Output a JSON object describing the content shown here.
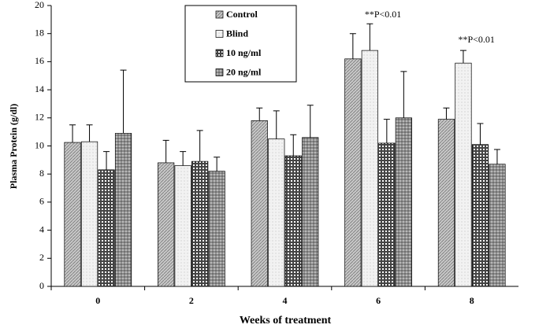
{
  "chart_data": {
    "type": "bar",
    "x_label": "Weeks of treatment",
    "y_label": "Plasma Protein (g/dl)",
    "categories": [
      "0",
      "2",
      "4",
      "6",
      "8"
    ],
    "series": [
      {
        "name": "Control",
        "color": "#c8c8c8",
        "values": [
          10.25,
          8.8,
          11.8,
          16.2,
          11.9
        ],
        "errors": [
          1.25,
          1.6,
          0.9,
          1.8,
          0.8
        ]
      },
      {
        "name": "Blind",
        "color": "#f2f2f2",
        "values": [
          10.3,
          8.6,
          10.5,
          16.8,
          15.9
        ],
        "errors": [
          1.2,
          1.0,
          2.0,
          1.9,
          0.9
        ]
      },
      {
        "name": "10 ng/ml",
        "color": "#444444",
        "values": [
          8.3,
          8.9,
          9.3,
          10.2,
          10.1
        ],
        "errors": [
          1.3,
          2.2,
          1.5,
          1.7,
          1.5
        ]
      },
      {
        "name": "20 ng/ml",
        "color": "#8a8a8a",
        "values": [
          10.9,
          8.2,
          10.6,
          12.0,
          8.7
        ],
        "errors": [
          4.5,
          1.0,
          2.3,
          3.3,
          1.05
        ]
      }
    ],
    "annotations": [
      "**P<0.01",
      "**P<0.01"
    ],
    "ylim": [
      0,
      20
    ],
    "yticks": [
      0,
      2,
      4,
      6,
      8,
      10,
      12,
      14,
      16,
      18,
      20
    ],
    "legend": "top"
  }
}
